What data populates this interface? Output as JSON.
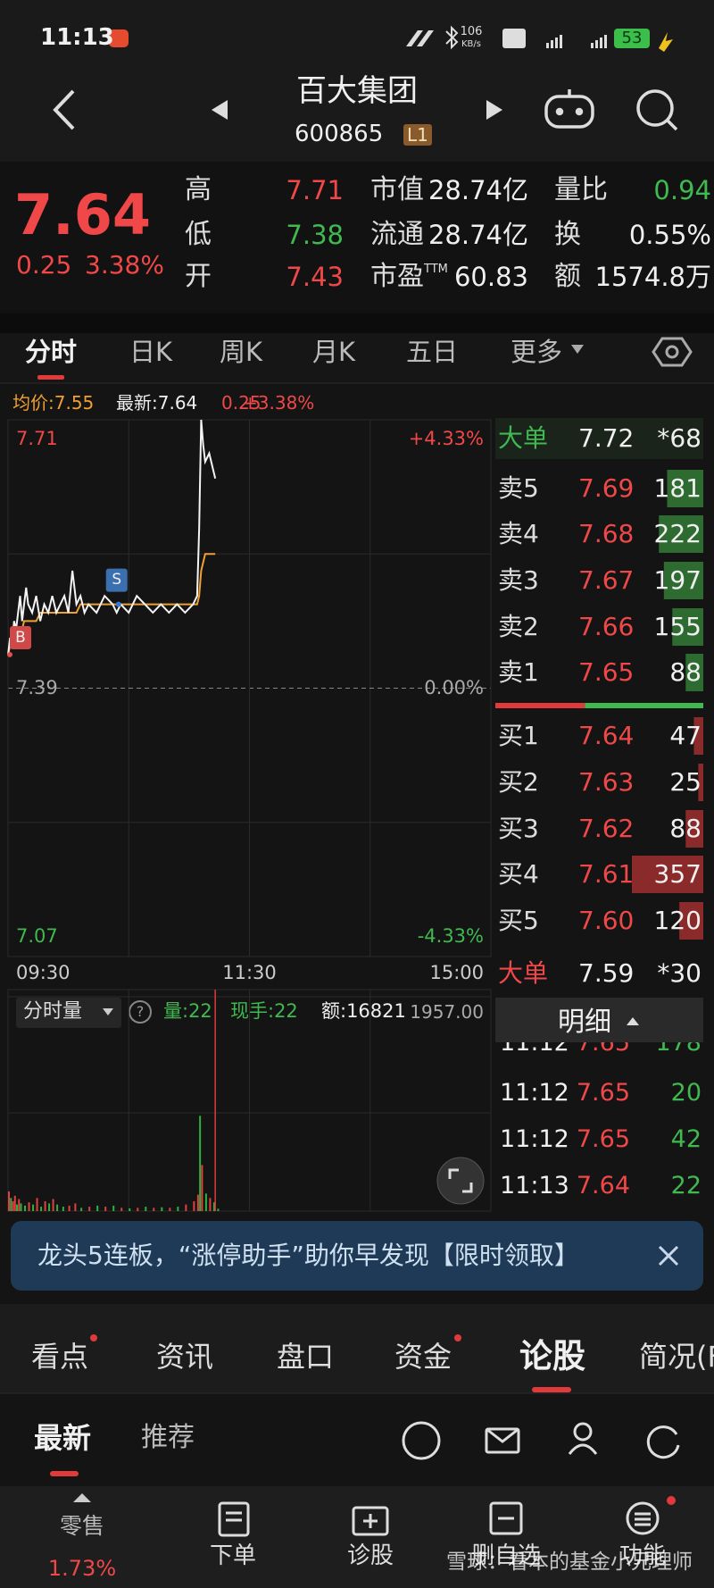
{
  "status_bar": {
    "time": "11:13",
    "speed": "106",
    "speed_unit": "KB/s",
    "battery": "53"
  },
  "header": {
    "name": "百大集团",
    "code": "600865",
    "level": "L1"
  },
  "quote": {
    "price": "7.64",
    "change": "0.25",
    "change_pct": "3.38%",
    "stats": [
      {
        "label": "高",
        "value": "7.71",
        "color": "#f04848"
      },
      {
        "label": "低",
        "value": "7.38",
        "color": "#3fb950"
      },
      {
        "label": "开",
        "value": "7.43",
        "color": "#f04848"
      },
      {
        "label": "市值",
        "value": "28.74亿",
        "color": "#f0f0f0"
      },
      {
        "label": "流通",
        "value": "28.74亿",
        "color": "#f0f0f0"
      },
      {
        "label": "市盈",
        "sup": "TTM",
        "value": "60.83",
        "color": "#f0f0f0"
      },
      {
        "label": "量比",
        "value": "0.94",
        "color": "#3fb950"
      },
      {
        "label": "换",
        "value": "0.55%",
        "color": "#f0f0f0"
      },
      {
        "label": "额",
        "value": "1574.8万",
        "color": "#f0f0f0"
      }
    ]
  },
  "tabs": [
    "分时",
    "日K",
    "周K",
    "月K",
    "五日",
    "更多"
  ],
  "summary": {
    "avg": "均价:7.55",
    "latest": "最新:7.64",
    "change": "0.25",
    "change_pct": "+3.38%"
  },
  "intraday": {
    "xlim": [
      0,
      240
    ],
    "ylim": [
      7.07,
      7.71
    ],
    "xticks": [
      {
        "value": 0,
        "label": "09:30"
      },
      {
        "value": 120,
        "label": "11:30"
      },
      {
        "value": 240,
        "label": "15:00"
      }
    ],
    "yticks": [
      7.71,
      7.39,
      7.07
    ],
    "pct_ticks": [
      "+4.33%",
      "0.00%",
      "-4.33%"
    ],
    "x": [
      0,
      1,
      2,
      3,
      4,
      5,
      6,
      7,
      8,
      9,
      10,
      12,
      14,
      16,
      18,
      20,
      22,
      24,
      26,
      28,
      30,
      32,
      34,
      36,
      38,
      40,
      44,
      48,
      52,
      54,
      56,
      60,
      64,
      68,
      72,
      76,
      80,
      84,
      88,
      92,
      94,
      95,
      96,
      97,
      98,
      100,
      102,
      103
    ],
    "price": [
      7.43,
      7.45,
      7.44,
      7.47,
      7.46,
      7.48,
      7.5,
      7.47,
      7.49,
      7.51,
      7.49,
      7.48,
      7.5,
      7.47,
      7.49,
      7.48,
      7.5,
      7.48,
      7.49,
      7.5,
      7.48,
      7.53,
      7.49,
      7.5,
      7.48,
      7.49,
      7.48,
      7.5,
      7.49,
      7.48,
      7.49,
      7.48,
      7.5,
      7.49,
      7.48,
      7.49,
      7.48,
      7.49,
      7.48,
      7.49,
      7.5,
      7.58,
      7.71,
      7.68,
      7.66,
      7.67,
      7.65,
      7.64
    ],
    "avg": [
      7.43,
      7.44,
      7.44,
      7.45,
      7.45,
      7.46,
      7.46,
      7.46,
      7.47,
      7.47,
      7.47,
      7.47,
      7.47,
      7.48,
      7.48,
      7.48,
      7.48,
      7.48,
      7.48,
      7.48,
      7.48,
      7.48,
      7.48,
      7.49,
      7.49,
      7.49,
      7.49,
      7.49,
      7.49,
      7.49,
      7.49,
      7.49,
      7.49,
      7.49,
      7.49,
      7.49,
      7.49,
      7.49,
      7.49,
      7.49,
      7.49,
      7.5,
      7.53,
      7.54,
      7.55,
      7.55,
      7.55,
      7.55
    ],
    "marks": [
      {
        "label": "B",
        "x": 0,
        "price": 7.43
      },
      {
        "label": "S",
        "x": 54,
        "price": 7.49
      }
    ]
  },
  "volume": {
    "label": "分时量",
    "help": "?",
    "qty": "量:22",
    "hand": "现手:22",
    "amount": "额:16821",
    "ylim": [
      0,
      1957
    ],
    "yticks": [
      {
        "value": 1957,
        "label": "1957.00"
      }
    ],
    "x": [
      0,
      1,
      2,
      3,
      4,
      5,
      6,
      8,
      10,
      12,
      14,
      16,
      18,
      20,
      22,
      24,
      27,
      30,
      33,
      36,
      40,
      44,
      48,
      52,
      56,
      60,
      64,
      68,
      72,
      76,
      80,
      84,
      88,
      92,
      94,
      95,
      96,
      98,
      100,
      102,
      104
    ],
    "values": [
      180,
      120,
      90,
      140,
      60,
      110,
      70,
      50,
      80,
      60,
      120,
      40,
      90,
      70,
      110,
      60,
      40,
      50,
      70,
      30,
      40,
      50,
      40,
      50,
      30,
      25,
      30,
      40,
      30,
      35,
      30,
      40,
      60,
      90,
      150,
      870,
      420,
      160,
      120,
      80,
      22
    ],
    "colors": [
      "#e04040",
      "#30b040",
      "#e04040",
      "#e04040",
      "#30b040",
      "#e04040",
      "#30b040",
      "#30b040",
      "#e04040",
      "#30b040",
      "#e04040",
      "#30b040",
      "#e04040",
      "#30b040",
      "#e04040",
      "#30b040",
      "#30b040",
      "#e04040",
      "#e04040",
      "#30b040",
      "#e04040",
      "#30b040",
      "#e04040",
      "#30b040",
      "#e04040",
      "#30b040",
      "#e04040",
      "#30b040",
      "#e04040",
      "#30b040",
      "#e04040",
      "#30b040",
      "#e04040",
      "#e04040",
      "#e04040",
      "#30b040",
      "#e04040",
      "#30b040",
      "#e04040",
      "#30b040",
      "#30b040"
    ]
  },
  "order_book": {
    "big_top": {
      "label": "大单",
      "price": "7.72",
      "qty": "*68"
    },
    "asks": [
      {
        "label": "卖5",
        "price": "7.69",
        "qty": 181
      },
      {
        "label": "卖4",
        "price": "7.68",
        "qty": 222
      },
      {
        "label": "卖3",
        "price": "7.67",
        "qty": 197
      },
      {
        "label": "卖2",
        "price": "7.66",
        "qty": 155
      },
      {
        "label": "卖1",
        "price": "7.65",
        "qty": 88
      }
    ],
    "bids": [
      {
        "label": "买1",
        "price": "7.64",
        "qty": 47
      },
      {
        "label": "买2",
        "price": "7.63",
        "qty": 25
      },
      {
        "label": "买3",
        "price": "7.62",
        "qty": 88
      },
      {
        "label": "买4",
        "price": "7.61",
        "qty": 357
      },
      {
        "label": "买5",
        "price": "7.60",
        "qty": 120
      }
    ],
    "big_bottom": {
      "label": "大单",
      "price": "7.59",
      "qty": "*30"
    }
  },
  "details": {
    "title": "明细",
    "rows": [
      [
        "11:12",
        "7.65",
        "178"
      ],
      [
        "11:12",
        "7.65",
        "20"
      ],
      [
        "11:12",
        "7.65",
        "42"
      ],
      [
        "11:13",
        "7.64",
        "22"
      ]
    ]
  },
  "banner": "龙头5连板，“涨停助手”助你早发现【限时领取】",
  "section_tabs": [
    "看点",
    "资讯",
    "盘口",
    "资金",
    "论股",
    "简况(F"
  ],
  "sub_tabs": [
    "最新",
    "推荐"
  ],
  "bottom_nav": {
    "retail": "零售",
    "retail_pct": "1.73%",
    "items": [
      "下单",
      "诊股",
      "删自选",
      "功能"
    ]
  },
  "watermark": "雪球：看本的基金小兄理师"
}
